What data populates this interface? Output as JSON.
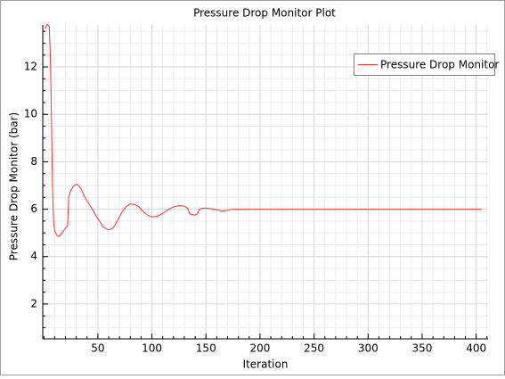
{
  "chart_data": {
    "type": "line",
    "title": "Pressure Drop Monitor Plot",
    "xlabel": "Iteration",
    "ylabel": "Pressure Drop Monitor (bar)",
    "x": [
      1,
      3,
      5,
      6,
      7,
      8,
      9,
      10,
      12,
      14,
      17,
      20,
      22,
      23,
      25,
      28,
      31,
      34,
      38,
      42,
      46,
      50,
      55,
      60,
      64,
      68,
      72,
      76,
      80,
      84,
      88,
      92,
      96,
      100,
      105,
      110,
      115,
      120,
      125,
      130,
      133,
      135,
      140,
      142,
      144,
      148,
      155,
      160,
      165,
      170,
      175,
      200,
      250,
      300,
      350,
      405
    ],
    "series": [
      {
        "name": "Pressure Drop Monitor",
        "color": "#ff3030",
        "values": [
          13.6,
          13.8,
          13.7,
          12.5,
          10,
          7,
          5.5,
          5.1,
          4.9,
          4.85,
          5.0,
          5.2,
          5.3,
          6.5,
          6.8,
          7.0,
          7.05,
          6.9,
          6.5,
          6.2,
          5.9,
          5.6,
          5.25,
          5.12,
          5.2,
          5.5,
          5.85,
          6.1,
          6.22,
          6.2,
          6.1,
          5.9,
          5.75,
          5.68,
          5.7,
          5.82,
          5.98,
          6.1,
          6.15,
          6.13,
          6.05,
          5.8,
          5.75,
          5.8,
          6.0,
          6.05,
          6.02,
          5.98,
          5.92,
          5.95,
          6.0,
          6.0,
          6.0,
          6.0,
          6.0,
          6.0
        ]
      }
    ],
    "xlim": [
      -1,
      411
    ],
    "ylim": [
      0.53,
      13.77
    ],
    "xticks": [
      50,
      100,
      150,
      200,
      250,
      300,
      350,
      400
    ],
    "yticks": [
      2,
      4,
      6,
      8,
      10,
      12
    ],
    "grid": true,
    "legend": "upper right"
  }
}
